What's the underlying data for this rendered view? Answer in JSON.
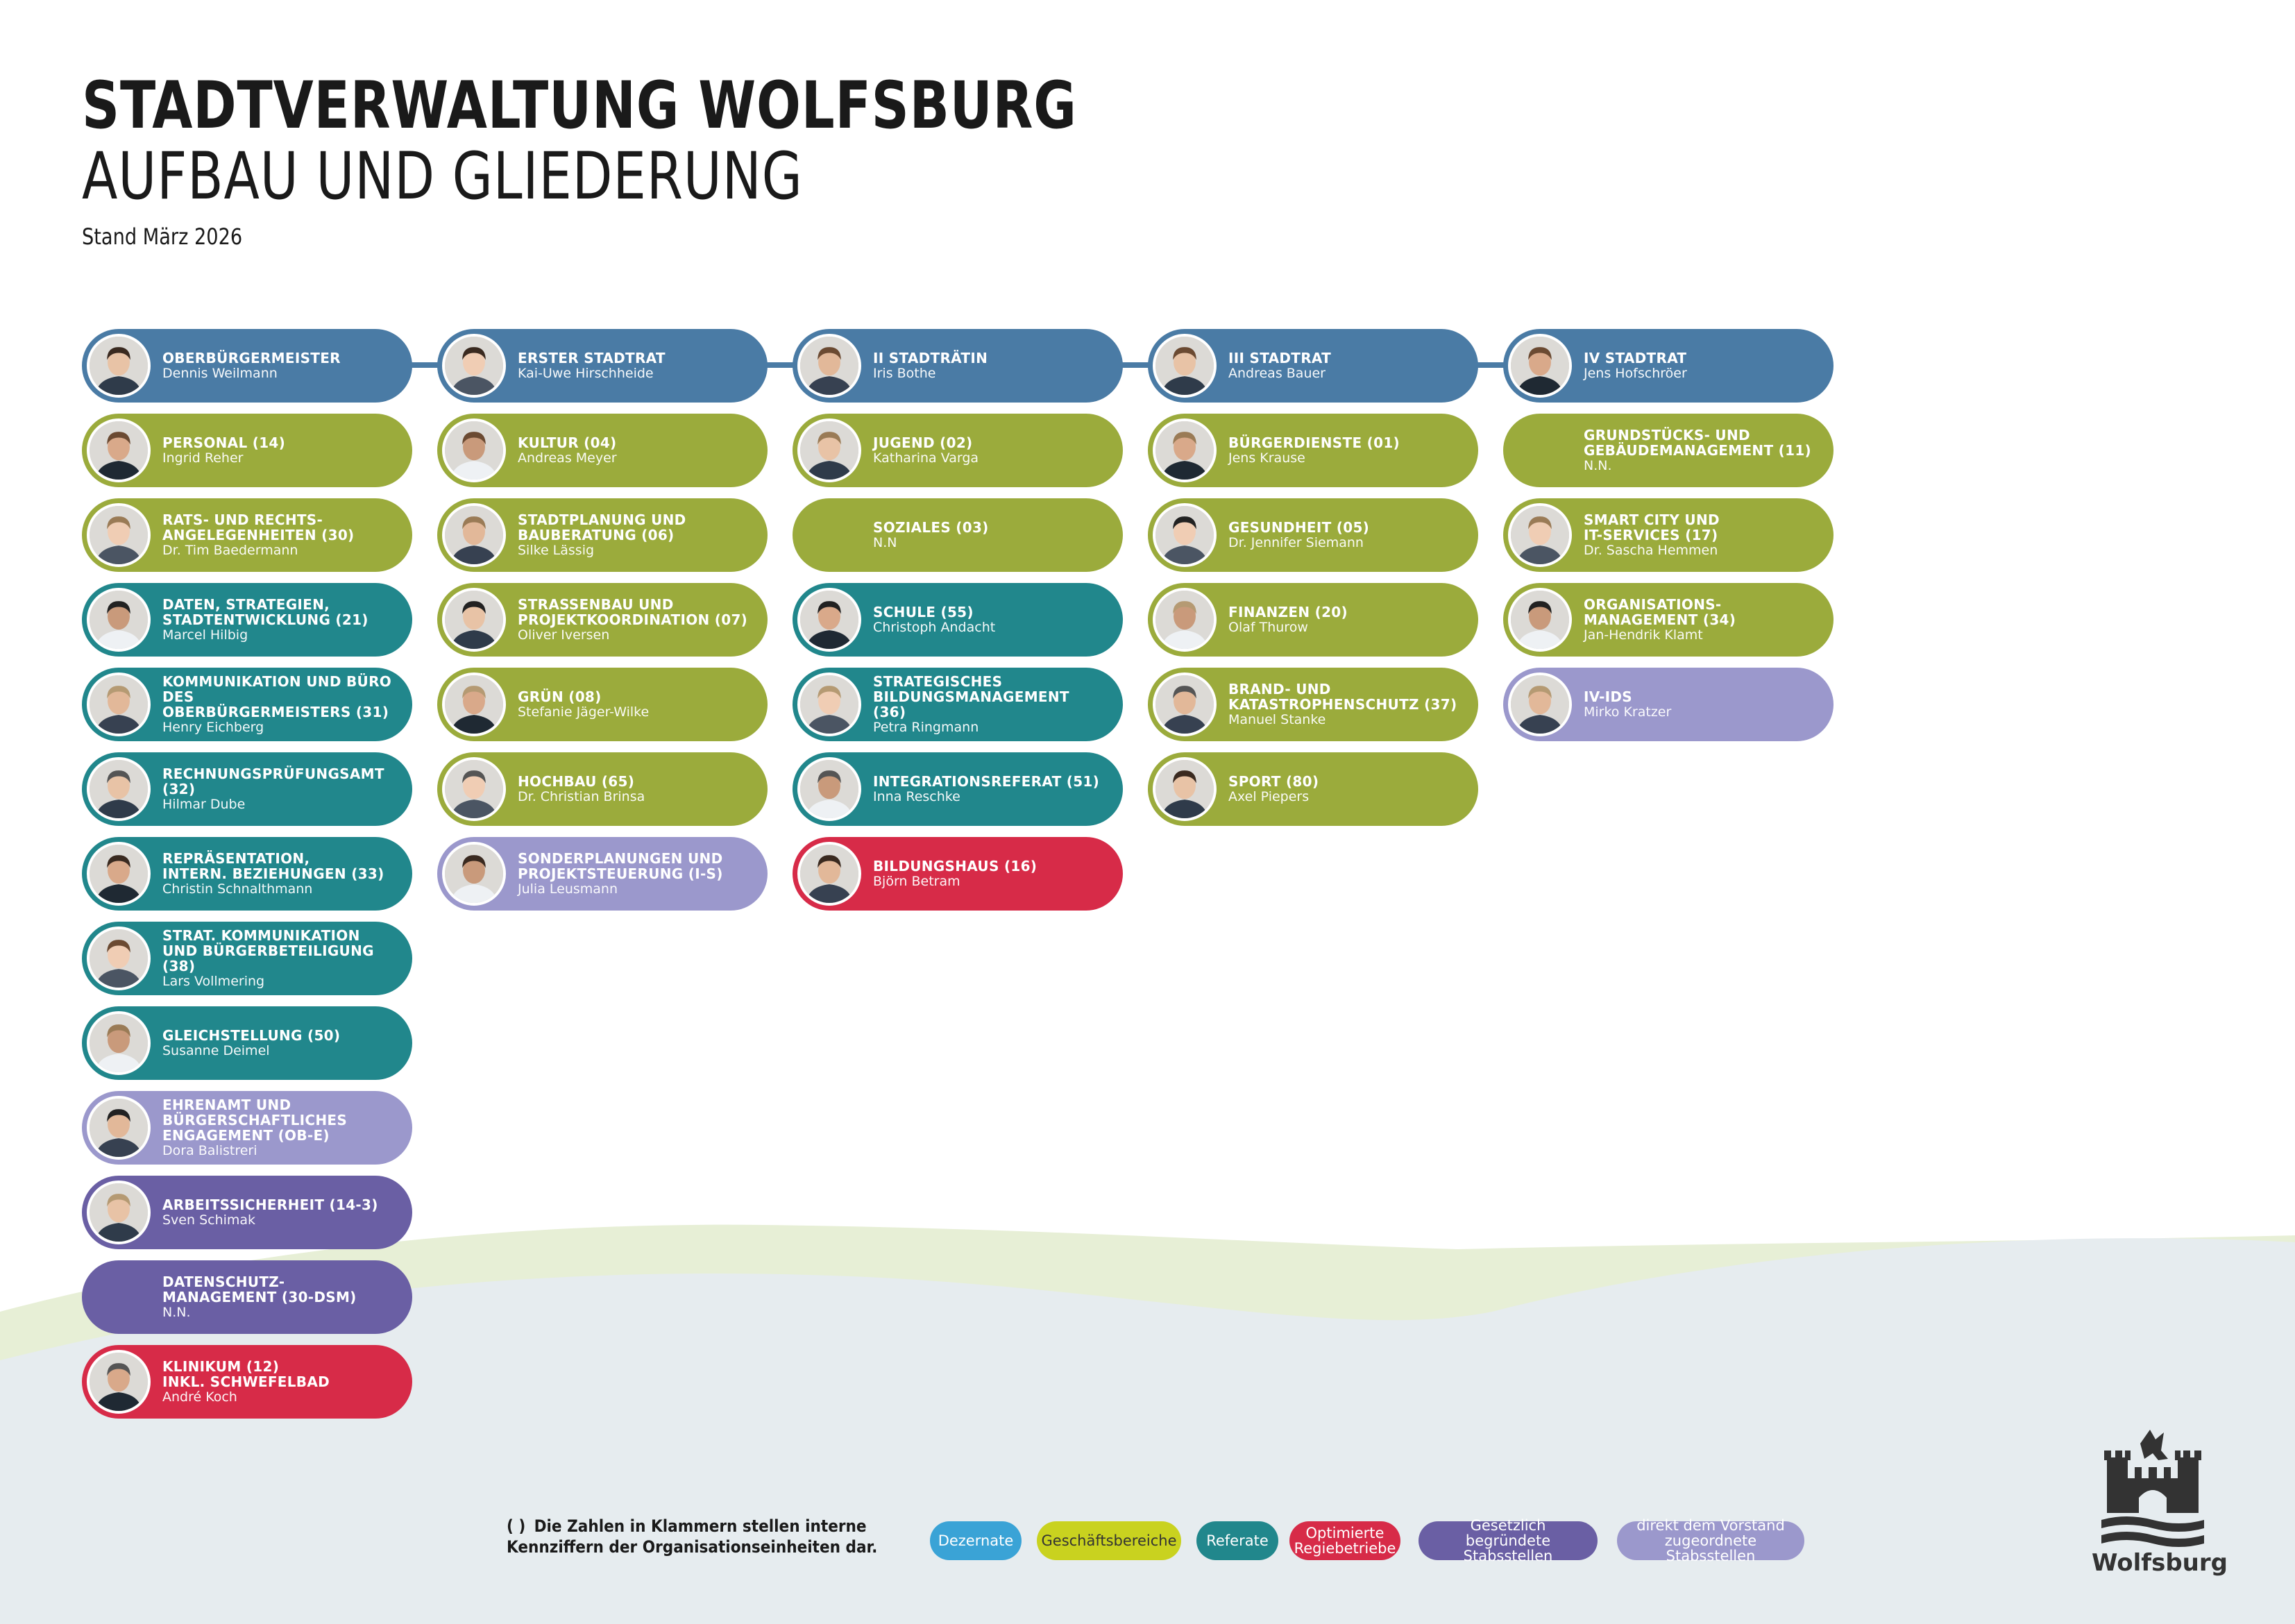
{
  "header": {
    "title": "STADTVERWALTUNG WOLFSBURG",
    "subtitle": "AUFBAU UND GLIEDERUNG",
    "stand": "Stand März 2026"
  },
  "colors": {
    "dezernate": "#4a7ba5",
    "geschaeftsbereiche": "#9bab3c",
    "referate": "#21878c",
    "optimierte_regiebetriebe": "#d72b48",
    "gesetzlich_stabsstellen": "#6a5fa4",
    "vorstand_stabsstellen": "#9b98cc",
    "legend_dezernate": "#3aa3d6",
    "legend_geschaeftsbereiche": "#c9d21f"
  },
  "columns": [
    {
      "units": [
        {
          "title": "OBERBÜRGERMEISTER",
          "person": "Dennis Weilmann",
          "type": "blue"
        },
        {
          "title": "PERSONAL (14)",
          "person": "Ingrid Reher",
          "type": "green"
        },
        {
          "title": "RATS- UND RECHTS-\nANGELEGENHEITEN (30)",
          "person": "Dr. Tim Baedermann",
          "type": "green"
        },
        {
          "title": "DATEN, STRATEGIEN,\nSTADTENTWICKLUNG (21)",
          "person": "Marcel Hilbig",
          "type": "teal"
        },
        {
          "title": "KOMMUNIKATION UND BÜRO DES\nOBERBÜRGERMEISTERS (31)",
          "person": "Henry Eichberg",
          "type": "teal"
        },
        {
          "title": "RECHNUNGSPRÜFUNGSAMT (32)",
          "person": "Hilmar Dube",
          "type": "teal"
        },
        {
          "title": "REPRÄSENTATION,\nINTERN. BEZIEHUNGEN (33)",
          "person": "Christin Schnalthmann",
          "type": "teal"
        },
        {
          "title": "STRAT. KOMMUNIKATION\nUND BÜRGERBETEILIGUNG (38)",
          "person": "Lars Vollmering",
          "type": "teal"
        },
        {
          "title": "GLEICHSTELLUNG (50)",
          "person": "Susanne Deimel",
          "type": "teal"
        },
        {
          "title": "EHRENAMT UND\nBÜRGERSCHAFTLICHES\nENGAGEMENT (OB-E)",
          "person": "Dora Balistreri",
          "type": "lpurp"
        },
        {
          "title": "ARBEITSSICHERHEIT (14-3)",
          "person": "Sven Schimak",
          "type": "dpurp"
        },
        {
          "title": "DATENSCHUTZ-\nMANAGEMENT (30-DSM)",
          "person": "N.N.",
          "type": "dpurp",
          "no_photo": true
        },
        {
          "title": "KLINIKUM (12)\nINKL. SCHWEFELBAD",
          "person": "André Koch",
          "type": "red"
        }
      ]
    },
    {
      "units": [
        {
          "title": "ERSTER STADTRAT",
          "person": "Kai-Uwe Hirschheide",
          "type": "blue"
        },
        {
          "title": "KULTUR (04)",
          "person": "Andreas Meyer",
          "type": "green"
        },
        {
          "title": "STADTPLANUNG UND\nBAUBERATUNG (06)",
          "person": "Silke Lässig",
          "type": "green"
        },
        {
          "title": "STRASSENBAU UND\nPROJEKTKOORDINATION (07)",
          "person": "Oliver Iversen",
          "type": "green"
        },
        {
          "title": "GRÜN (08)",
          "person": "Stefanie Jäger-Wilke",
          "type": "green"
        },
        {
          "title": "HOCHBAU (65)",
          "person": "Dr. Christian Brinsa",
          "type": "green"
        },
        {
          "title": "SONDERPLANUNGEN UND\nPROJEKTSTEUERUNG (I-S)",
          "person": "Julia Leusmann",
          "type": "lpurp"
        }
      ]
    },
    {
      "units": [
        {
          "title": "II STADTRÄTIN",
          "person": "Iris Bothe",
          "type": "blue"
        },
        {
          "title": "JUGEND (02)",
          "person": "Katharina Varga",
          "type": "green"
        },
        {
          "title": "SOZIALES (03)",
          "person": "N.N",
          "type": "green",
          "no_photo": true
        },
        {
          "title": "SCHULE (55)",
          "person": "Christoph Andacht",
          "type": "teal"
        },
        {
          "title": "STRATEGISCHES\nBILDUNGSMANAGEMENT (36)",
          "person": "Petra Ringmann",
          "type": "teal"
        },
        {
          "title": "INTEGRATIONSREFERAT (51)",
          "person": "Inna Reschke",
          "type": "teal"
        },
        {
          "title": "BILDUNGSHAUS (16)",
          "person": "Björn Betram",
          "type": "red"
        }
      ]
    },
    {
      "units": [
        {
          "title": "III STADTRAT",
          "person": "Andreas Bauer",
          "type": "blue"
        },
        {
          "title": "BÜRGERDIENSTE (01)",
          "person": "Jens Krause",
          "type": "green"
        },
        {
          "title": "GESUNDHEIT (05)",
          "person": "Dr. Jennifer Siemann",
          "type": "green"
        },
        {
          "title": "FINANZEN (20)",
          "person": "Olaf Thurow",
          "type": "green"
        },
        {
          "title": "BRAND- UND\nKATASTROPHENSCHUTZ (37)",
          "person": "Manuel Stanke",
          "type": "green"
        },
        {
          "title": "SPORT (80)",
          "person": "Axel Piepers",
          "type": "green"
        }
      ]
    },
    {
      "units": [
        {
          "title": "IV STADTRAT",
          "person": "Jens Hofschröer",
          "type": "blue"
        },
        {
          "title": "GRUNDSTÜCKS- UND\nGEBÄUDEMANAGEMENT (11)",
          "person": "N.N.",
          "type": "green",
          "no_photo": true
        },
        {
          "title": "SMART CITY UND\nIT-SERVICES  (17)",
          "person": "Dr. Sascha Hemmen",
          "type": "green"
        },
        {
          "title": "ORGANISATIONS-\nMANAGEMENT (34)",
          "person": "Jan-Hendrik Klamt",
          "type": "green"
        },
        {
          "title": "IV-IDS",
          "person": "Mirko Kratzer",
          "type": "lpurp"
        }
      ]
    }
  ],
  "legend": {
    "note_paren": "( )",
    "note_line1": "Die Zahlen in Klammern stellen interne",
    "note_line2": "Kennziffern der Organisationseinheiten dar.",
    "items": [
      {
        "label": "Dezernate",
        "class": "dz"
      },
      {
        "label": "Geschäftsbereiche",
        "class": "gb"
      },
      {
        "label": "Referate",
        "class": "teal"
      },
      {
        "label": "Optimierte\nRegiebetriebe",
        "class": "red"
      },
      {
        "label": "Gesetzlich\nbegründete Stabsstellen",
        "class": "dpurp"
      },
      {
        "label": "direkt dem Vorstand\nzugeordnete Stabsstellen",
        "class": "lpurp"
      }
    ]
  },
  "logo": {
    "text": "Wolfsburg",
    "icon": "wolfsburg-castle-wolf-emblem"
  }
}
